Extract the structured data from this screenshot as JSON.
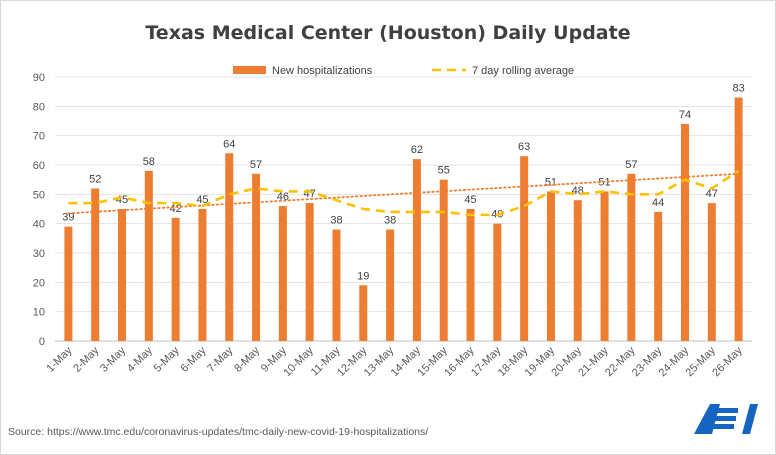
{
  "chart_data": {
    "type": "bar",
    "title": "Texas Medical Center (Houston) Daily Update",
    "categories": [
      "1-May",
      "2-May",
      "3-May",
      "4-May",
      "5-May",
      "6-May",
      "7-May",
      "8-May",
      "9-May",
      "10-May",
      "11-May",
      "12-May",
      "13-May",
      "14-May",
      "15-May",
      "16-May",
      "17-May",
      "18-May",
      "19-May",
      "20-May",
      "21-May",
      "22-May",
      "23-May",
      "24-May",
      "25-May",
      "26-May"
    ],
    "series": [
      {
        "name": "New hospitalizations",
        "type": "bar",
        "color": "#ed7d31",
        "values": [
          39,
          52,
          45,
          58,
          42,
          45,
          64,
          57,
          46,
          47,
          38,
          19,
          38,
          62,
          55,
          45,
          40,
          63,
          51,
          48,
          51,
          57,
          44,
          74,
          47,
          83
        ]
      },
      {
        "name": "7 day rolling average",
        "type": "line",
        "style": "dashed",
        "color": "#ffc000",
        "values": [
          47,
          47,
          49,
          47,
          47,
          46,
          50,
          52,
          51,
          51,
          48,
          45,
          44,
          44,
          44,
          43,
          43,
          46,
          51,
          50,
          51,
          50,
          50,
          55,
          52,
          58
        ]
      }
    ],
    "trendline": {
      "type": "linear",
      "style": "dotted",
      "color": "#ed7d31",
      "start": 43.5,
      "end": 57
    },
    "ylim": [
      0,
      90
    ],
    "yticks": [
      0,
      10,
      20,
      30,
      40,
      50,
      60,
      70,
      80,
      90
    ],
    "xlabel": "",
    "ylabel": "",
    "grid": true,
    "legend": "top"
  },
  "source": "Source: https://www.tmc.edu/coronavirus-updates/tmc-daily-new-covid-19-hospitalizations/",
  "logo_text": "AEI"
}
